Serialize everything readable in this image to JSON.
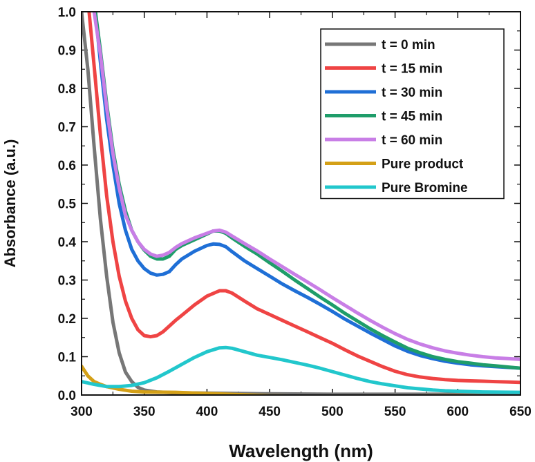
{
  "chart_data": {
    "type": "line",
    "title": "",
    "xlabel": "Wavelength (nm)",
    "ylabel": "Absorbance (a.u.)",
    "xlim": [
      300,
      650
    ],
    "ylim": [
      0.0,
      1.0
    ],
    "xticks": [
      300,
      350,
      400,
      450,
      500,
      550,
      600,
      650
    ],
    "xtick_labels": [
      "300",
      "350",
      "400",
      "450",
      "500",
      "550",
      "600",
      "650"
    ],
    "yticks": [
      0.0,
      0.1,
      0.2,
      0.3,
      0.4,
      0.5,
      0.6,
      0.7,
      0.8,
      0.9,
      1.0
    ],
    "ytick_labels": [
      "0.0",
      "0.1",
      "0.2",
      "0.3",
      "0.4",
      "0.5",
      "0.6",
      "0.7",
      "0.8",
      "0.9",
      "1.0"
    ],
    "legend_position": "top-right",
    "series": [
      {
        "name": "t = 0 min",
        "color": "#777777",
        "x": [
          300,
          305,
          310,
          315,
          320,
          325,
          330,
          335,
          340,
          345,
          350,
          360,
          375,
          400,
          450,
          500,
          550,
          600,
          650
        ],
        "y": [
          1.0,
          0.85,
          0.65,
          0.46,
          0.31,
          0.19,
          0.11,
          0.06,
          0.035,
          0.02,
          0.013,
          0.008,
          0.006,
          0.005,
          0.003,
          0.002,
          0.002,
          0.002,
          0.002
        ]
      },
      {
        "name": "t = 15 min",
        "color": "#ef4444",
        "x": [
          306,
          310,
          315,
          320,
          325,
          330,
          335,
          340,
          345,
          350,
          355,
          360,
          365,
          370,
          375,
          380,
          390,
          400,
          410,
          415,
          420,
          430,
          440,
          450,
          460,
          470,
          480,
          490,
          500,
          510,
          520,
          530,
          540,
          550,
          560,
          570,
          580,
          590,
          600,
          610,
          620,
          630,
          640,
          650
        ],
        "y": [
          1.0,
          0.86,
          0.68,
          0.52,
          0.4,
          0.31,
          0.245,
          0.2,
          0.17,
          0.155,
          0.152,
          0.155,
          0.165,
          0.18,
          0.195,
          0.208,
          0.235,
          0.258,
          0.272,
          0.272,
          0.266,
          0.245,
          0.225,
          0.21,
          0.195,
          0.18,
          0.165,
          0.15,
          0.135,
          0.118,
          0.102,
          0.088,
          0.074,
          0.062,
          0.053,
          0.047,
          0.043,
          0.04,
          0.038,
          0.037,
          0.036,
          0.035,
          0.034,
          0.033
        ]
      },
      {
        "name": "t = 30 min",
        "color": "#1f6fd6",
        "x": [
          311,
          315,
          320,
          325,
          330,
          335,
          340,
          345,
          350,
          355,
          360,
          365,
          370,
          375,
          380,
          390,
          400,
          405,
          410,
          415,
          420,
          430,
          440,
          450,
          460,
          470,
          480,
          490,
          500,
          510,
          520,
          530,
          540,
          550,
          560,
          570,
          580,
          590,
          600,
          610,
          620,
          630,
          640,
          650
        ],
        "y": [
          1.0,
          0.87,
          0.72,
          0.6,
          0.5,
          0.43,
          0.38,
          0.35,
          0.33,
          0.318,
          0.313,
          0.315,
          0.322,
          0.34,
          0.355,
          0.375,
          0.39,
          0.394,
          0.393,
          0.387,
          0.374,
          0.35,
          0.33,
          0.31,
          0.29,
          0.272,
          0.255,
          0.237,
          0.218,
          0.198,
          0.18,
          0.162,
          0.145,
          0.128,
          0.114,
          0.103,
          0.095,
          0.088,
          0.083,
          0.079,
          0.076,
          0.074,
          0.072,
          0.07
        ]
      },
      {
        "name": "t = 45 min",
        "color": "#1f9d6a",
        "x": [
          311,
          315,
          320,
          325,
          330,
          335,
          340,
          345,
          350,
          355,
          360,
          365,
          370,
          375,
          380,
          390,
          400,
          405,
          410,
          415,
          420,
          430,
          440,
          450,
          460,
          470,
          480,
          490,
          500,
          510,
          520,
          530,
          540,
          550,
          560,
          570,
          580,
          590,
          600,
          610,
          620,
          630,
          640,
          650
        ],
        "y": [
          1.0,
          0.9,
          0.76,
          0.64,
          0.55,
          0.48,
          0.43,
          0.4,
          0.378,
          0.362,
          0.355,
          0.355,
          0.362,
          0.38,
          0.39,
          0.405,
          0.42,
          0.428,
          0.428,
          0.422,
          0.41,
          0.388,
          0.368,
          0.345,
          0.323,
          0.3,
          0.278,
          0.256,
          0.235,
          0.213,
          0.193,
          0.173,
          0.155,
          0.138,
          0.122,
          0.11,
          0.1,
          0.093,
          0.087,
          0.083,
          0.079,
          0.076,
          0.073,
          0.07
        ]
      },
      {
        "name": "t = 60 min",
        "color": "#c87ee6",
        "x": [
          310,
          315,
          320,
          325,
          330,
          335,
          340,
          345,
          350,
          355,
          360,
          365,
          370,
          375,
          380,
          390,
          400,
          405,
          410,
          415,
          420,
          430,
          440,
          450,
          460,
          470,
          480,
          490,
          500,
          510,
          520,
          530,
          540,
          550,
          560,
          570,
          580,
          590,
          600,
          610,
          620,
          630,
          640,
          650
        ],
        "y": [
          1.0,
          0.89,
          0.75,
          0.63,
          0.54,
          0.47,
          0.43,
          0.4,
          0.38,
          0.368,
          0.362,
          0.365,
          0.372,
          0.385,
          0.395,
          0.41,
          0.422,
          0.428,
          0.43,
          0.425,
          0.415,
          0.395,
          0.376,
          0.355,
          0.335,
          0.315,
          0.295,
          0.275,
          0.254,
          0.234,
          0.214,
          0.195,
          0.177,
          0.16,
          0.145,
          0.133,
          0.123,
          0.115,
          0.109,
          0.104,
          0.1,
          0.097,
          0.095,
          0.093
        ]
      },
      {
        "name": "Pure product",
        "color": "#d4a017",
        "x": [
          300,
          305,
          310,
          315,
          320,
          330,
          340,
          350,
          375,
          400,
          450,
          500,
          550,
          600,
          650
        ],
        "y": [
          0.075,
          0.05,
          0.035,
          0.028,
          0.022,
          0.015,
          0.01,
          0.008,
          0.007,
          0.004,
          -0.002,
          -0.004,
          -0.003,
          -0.002,
          -0.003
        ]
      },
      {
        "name": "Pure Bromine",
        "color": "#22c7cc",
        "x": [
          300,
          310,
          320,
          330,
          340,
          350,
          360,
          370,
          380,
          390,
          400,
          410,
          415,
          420,
          430,
          440,
          450,
          460,
          470,
          480,
          490,
          500,
          510,
          520,
          530,
          540,
          550,
          560,
          570,
          580,
          590,
          600,
          620,
          650
        ],
        "y": [
          0.035,
          0.028,
          0.022,
          0.022,
          0.025,
          0.032,
          0.045,
          0.062,
          0.08,
          0.098,
          0.113,
          0.123,
          0.124,
          0.122,
          0.113,
          0.104,
          0.098,
          0.092,
          0.085,
          0.078,
          0.07,
          0.061,
          0.052,
          0.043,
          0.035,
          0.029,
          0.024,
          0.019,
          0.016,
          0.013,
          0.011,
          0.01,
          0.008,
          0.007
        ]
      }
    ]
  }
}
